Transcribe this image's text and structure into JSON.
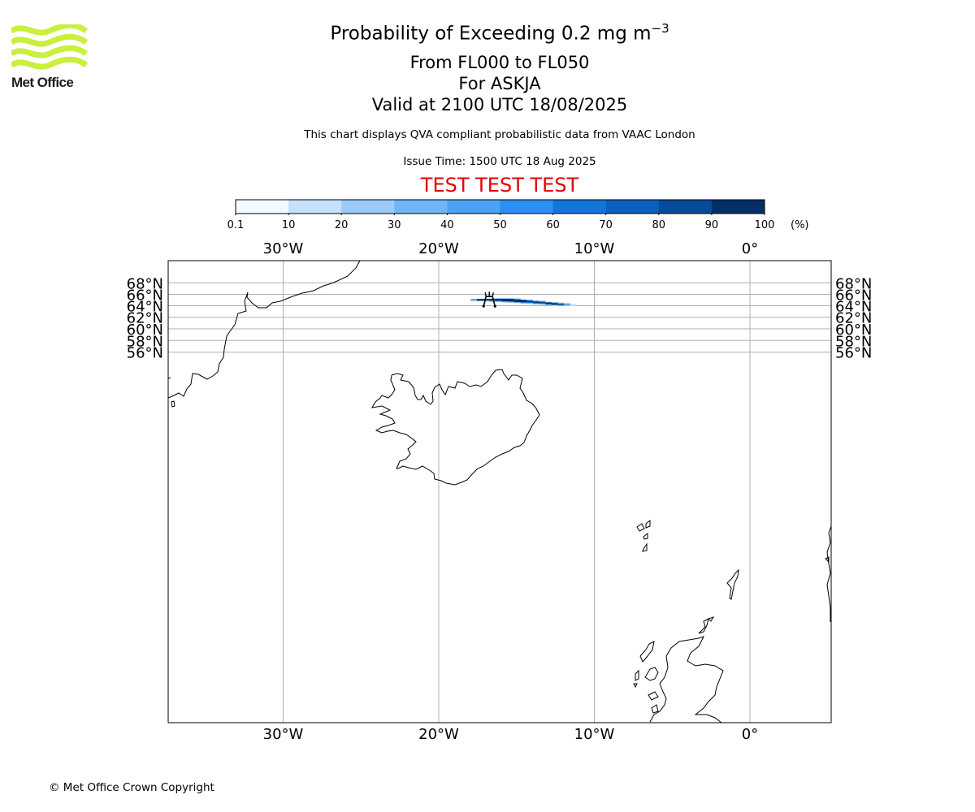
{
  "logo": {
    "text": "Met Office",
    "stripe_color": "#c8f03c"
  },
  "header": {
    "title_prefix": "Probability of Exceeding 0.2 mg m",
    "title_exponent": "−3",
    "level_range": "From FL000 to FL050",
    "volcano": "For ASKJA",
    "valid_time": "Valid at 2100 UTC 18/08/2025",
    "note": "This chart displays QVA compliant probabilistic data from VAAC London",
    "issue_time": "Issue Time: 1500 UTC 18 Aug 2025",
    "test_banner": "TEST TEST TEST"
  },
  "colorbar": {
    "ticks": [
      "0.1",
      "10",
      "20",
      "30",
      "40",
      "50",
      "60",
      "70",
      "80",
      "90",
      "100"
    ],
    "unit": "(%)",
    "colors": [
      "#f3f9fe",
      "#c6e1fb",
      "#9ccbf8",
      "#71b5f7",
      "#4aa2f5",
      "#2a8ff0",
      "#1276d9",
      "#0a61bd",
      "#064b9a",
      "#032f66"
    ]
  },
  "map": {
    "lon_range": [
      -37,
      5
    ],
    "lat_range": [
      55.7,
      69.3
    ],
    "lon_labels": [
      {
        "lon": -30,
        "text": "30°W"
      },
      {
        "lon": -20,
        "text": "20°W"
      },
      {
        "lon": -10,
        "text": "10°W"
      },
      {
        "lon": 0,
        "text": "0°"
      }
    ],
    "lat_labels": [
      {
        "lat": 68,
        "text": "68°N"
      },
      {
        "lat": 66,
        "text": "66°N"
      },
      {
        "lat": 64,
        "text": "64°N"
      },
      {
        "lat": 62,
        "text": "62°N"
      },
      {
        "lat": 60,
        "text": "60°N"
      },
      {
        "lat": 58,
        "text": "58°N"
      },
      {
        "lat": 56,
        "text": "56°N"
      }
    ],
    "volcano": {
      "name": "ASKJA",
      "lon": -16.75,
      "lat": 65.05
    },
    "plume_levels": [
      [
        0,
        0,
        0,
        1,
        2,
        2,
        2,
        1,
        0,
        0,
        0,
        0,
        0,
        0,
        0,
        0,
        0,
        0,
        0
      ],
      [
        4,
        9,
        9,
        9,
        9,
        9,
        9,
        5,
        0,
        0,
        0,
        0,
        0,
        0,
        0,
        0,
        0,
        0,
        0
      ],
      [
        4,
        9,
        9,
        9,
        9,
        9,
        9,
        9,
        9,
        4,
        0,
        0,
        0,
        0,
        0,
        0,
        0,
        0,
        0
      ],
      [
        0,
        0,
        1,
        4,
        5,
        9,
        9,
        9,
        9,
        7,
        4,
        2,
        0,
        0,
        0,
        0,
        0,
        0,
        0
      ],
      [
        0,
        0,
        0,
        0,
        0,
        2,
        4,
        9,
        9,
        9,
        8,
        6,
        1,
        0,
        0,
        0,
        0,
        0,
        0
      ],
      [
        0,
        0,
        0,
        0,
        0,
        0,
        0,
        1,
        4,
        5,
        9,
        9,
        9,
        4,
        1,
        0,
        0,
        0,
        0
      ],
      [
        0,
        0,
        0,
        0,
        0,
        0,
        0,
        0,
        0,
        1,
        3,
        5,
        9,
        9,
        5,
        2,
        0,
        0,
        0
      ],
      [
        0,
        0,
        0,
        0,
        0,
        0,
        0,
        0,
        0,
        0,
        0,
        1,
        4,
        9,
        9,
        5,
        1,
        0,
        0
      ],
      [
        0,
        0,
        0,
        0,
        0,
        0,
        0,
        0,
        0,
        0,
        0,
        0,
        0,
        1,
        3,
        2,
        1,
        0,
        0
      ]
    ]
  },
  "footer": {
    "copyright": "© Met Office Crown Copyright"
  }
}
